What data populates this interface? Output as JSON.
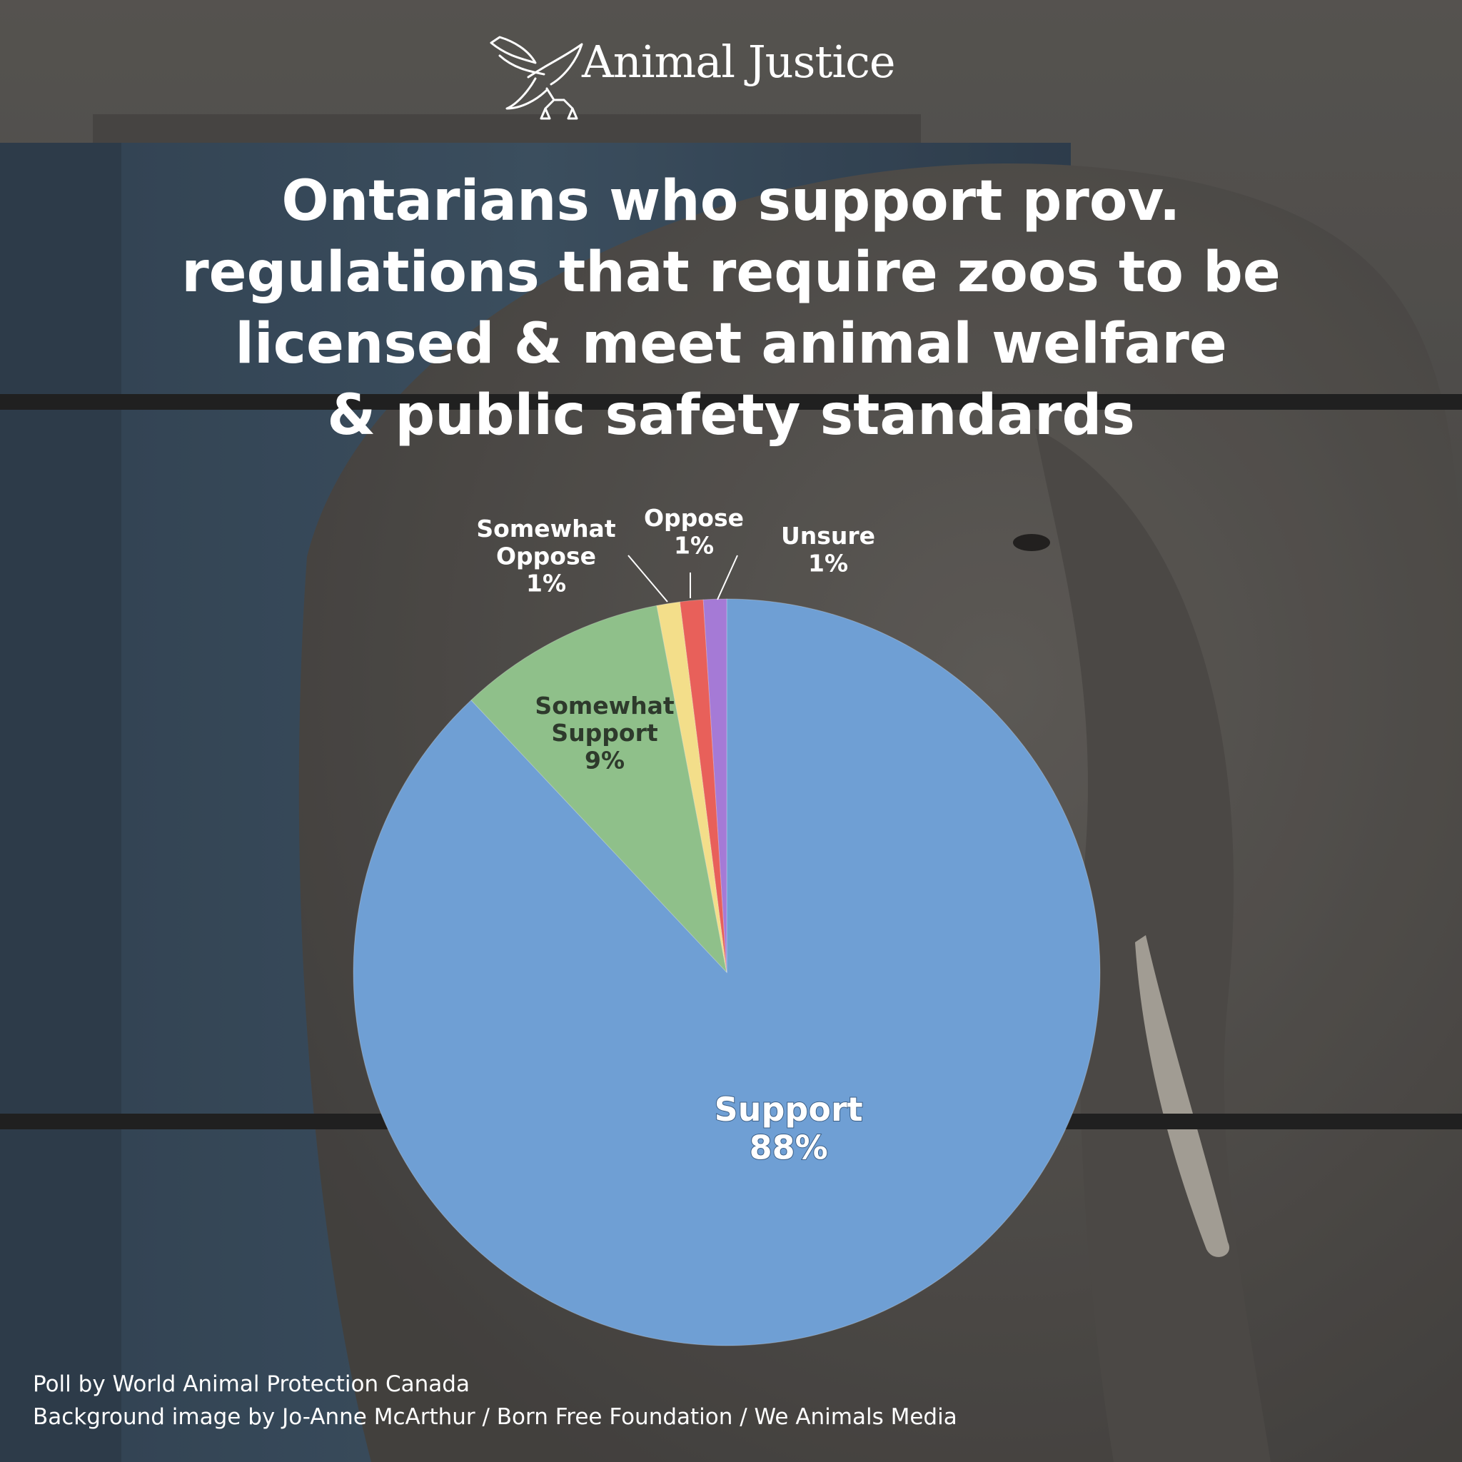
{
  "brand": {
    "logo_text": "Animal Justice"
  },
  "colors": {
    "support": "#6f9fd4",
    "somewhat_support": "#8fc08a",
    "somewhat_oppose": "#f3de8a",
    "oppose": "#e8605a",
    "unsure": "#a57ad6"
  },
  "chart_data": {
    "type": "pie",
    "title": "Ontarians who support prov. regulations that require zoos to be licensed & meet animal welfare & public safety standards",
    "title_lines": [
      "Ontarians who support prov.",
      "regulations that require zoos to be",
      "licensed & meet animal welfare",
      "& public safety standards"
    ],
    "slices": [
      {
        "label_lines": [
          "Support"
        ],
        "value": 88,
        "value_label": "88%",
        "color": "#6f9fd4"
      },
      {
        "label_lines": [
          "Somewhat",
          "Support"
        ],
        "value": 9,
        "value_label": "9%",
        "color": "#8fc08a"
      },
      {
        "label_lines": [
          "Somewhat",
          "Oppose"
        ],
        "value": 1,
        "value_label": "1%",
        "color": "#f3de8a"
      },
      {
        "label_lines": [
          "Oppose"
        ],
        "value": 1,
        "value_label": "1%",
        "color": "#e8605a"
      },
      {
        "label_lines": [
          "Unsure"
        ],
        "value": 1,
        "value_label": "1%",
        "color": "#a57ad6"
      }
    ]
  },
  "footer": {
    "poll_credit": "Poll by World Animal Protection Canada",
    "image_credit": "Background image by Jo-Anne McArthur / Born Free Foundation / We Animals Media"
  }
}
